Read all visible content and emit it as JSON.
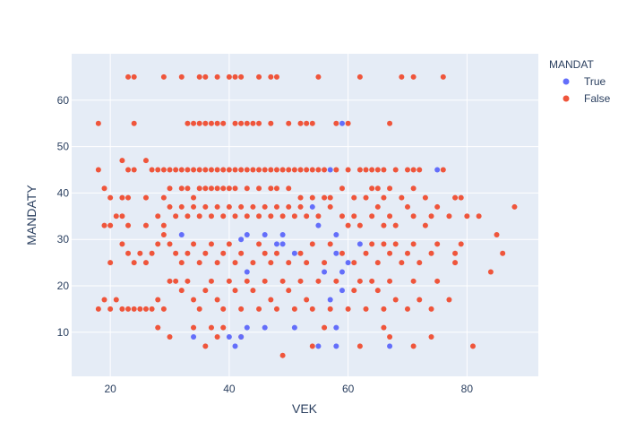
{
  "chart_data": {
    "type": "scatter",
    "xlabel": "VEK",
    "ylabel": "MANDATY",
    "xlim": [
      13.5,
      92
    ],
    "ylim": [
      0.5,
      70
    ],
    "x_ticks": [
      20,
      40,
      60,
      80
    ],
    "y_ticks": [
      10,
      20,
      30,
      40,
      50,
      60
    ],
    "grid": true,
    "legend": {
      "title": "MANDAT",
      "placement": "right"
    },
    "colors": {
      "True": "#636efa",
      "False": "#ef553b",
      "plot_bg": "#e5ecf6",
      "grid": "#ffffff",
      "text": "#2a3f5f"
    },
    "series": [
      {
        "name": "True",
        "color": "#636efa",
        "points": [
          [
            32,
            31
          ],
          [
            42,
            30
          ],
          [
            43,
            31
          ],
          [
            46,
            31
          ],
          [
            48,
            29
          ],
          [
            49,
            31
          ],
          [
            49,
            29
          ],
          [
            51,
            27
          ],
          [
            54,
            37
          ],
          [
            55,
            33
          ],
          [
            56,
            23
          ],
          [
            57,
            45
          ],
          [
            58,
            31
          ],
          [
            58,
            27
          ],
          [
            59,
            23
          ],
          [
            60,
            25
          ],
          [
            62,
            29
          ],
          [
            75,
            45
          ],
          [
            59,
            55
          ],
          [
            40,
            9
          ],
          [
            41,
            7
          ],
          [
            42,
            9
          ],
          [
            43,
            11
          ],
          [
            46,
            11
          ],
          [
            51,
            11
          ],
          [
            55,
            7
          ],
          [
            58,
            7
          ],
          [
            67,
            7
          ],
          [
            43,
            23
          ],
          [
            57,
            17
          ],
          [
            59,
            19
          ],
          [
            58,
            11
          ],
          [
            34,
            9
          ]
        ]
      },
      {
        "name": "False",
        "color": "#ef553b",
        "points": [
          [
            23,
            65
          ],
          [
            24,
            65
          ],
          [
            29,
            65
          ],
          [
            32,
            65
          ],
          [
            35,
            65
          ],
          [
            36,
            65
          ],
          [
            38,
            65
          ],
          [
            40,
            65
          ],
          [
            41,
            65
          ],
          [
            42,
            65
          ],
          [
            45,
            65
          ],
          [
            47,
            65
          ],
          [
            48,
            65
          ],
          [
            55,
            65
          ],
          [
            62,
            65
          ],
          [
            69,
            65
          ],
          [
            71,
            65
          ],
          [
            76,
            65
          ],
          [
            18,
            55
          ],
          [
            24,
            55
          ],
          [
            33,
            55
          ],
          [
            34,
            55
          ],
          [
            35,
            55
          ],
          [
            36,
            55
          ],
          [
            37,
            55
          ],
          [
            38,
            55
          ],
          [
            39,
            55
          ],
          [
            41,
            55
          ],
          [
            42,
            55
          ],
          [
            43,
            55
          ],
          [
            44,
            55
          ],
          [
            45,
            55
          ],
          [
            47,
            55
          ],
          [
            50,
            55
          ],
          [
            52,
            55
          ],
          [
            53,
            55
          ],
          [
            54,
            55
          ],
          [
            58,
            55
          ],
          [
            60,
            55
          ],
          [
            67,
            55
          ],
          [
            18,
            45
          ],
          [
            22,
            47
          ],
          [
            23,
            45
          ],
          [
            24,
            45
          ],
          [
            26,
            47
          ],
          [
            27,
            45
          ],
          [
            28,
            45
          ],
          [
            29,
            45
          ],
          [
            30,
            45
          ],
          [
            31,
            45
          ],
          [
            32,
            45
          ],
          [
            33,
            45
          ],
          [
            34,
            45
          ],
          [
            35,
            45
          ],
          [
            36,
            45
          ],
          [
            37,
            45
          ],
          [
            38,
            45
          ],
          [
            39,
            45
          ],
          [
            40,
            45
          ],
          [
            41,
            45
          ],
          [
            42,
            45
          ],
          [
            43,
            45
          ],
          [
            44,
            45
          ],
          [
            45,
            45
          ],
          [
            46,
            45
          ],
          [
            47,
            45
          ],
          [
            48,
            45
          ],
          [
            49,
            45
          ],
          [
            50,
            45
          ],
          [
            51,
            45
          ],
          [
            52,
            45
          ],
          [
            53,
            45
          ],
          [
            54,
            45
          ],
          [
            55,
            45
          ],
          [
            56,
            45
          ],
          [
            58,
            45
          ],
          [
            60,
            45
          ],
          [
            62,
            45
          ],
          [
            63,
            45
          ],
          [
            64,
            45
          ],
          [
            65,
            45
          ],
          [
            66,
            45
          ],
          [
            68,
            45
          ],
          [
            70,
            45
          ],
          [
            71,
            45
          ],
          [
            72,
            45
          ],
          [
            76,
            45
          ],
          [
            19,
            41
          ],
          [
            20,
            39
          ],
          [
            22,
            39
          ],
          [
            23,
            39
          ],
          [
            26,
            39
          ],
          [
            29,
            39
          ],
          [
            30,
            41
          ],
          [
            32,
            41
          ],
          [
            33,
            41
          ],
          [
            34,
            39
          ],
          [
            35,
            41
          ],
          [
            36,
            41
          ],
          [
            37,
            41
          ],
          [
            38,
            41
          ],
          [
            39,
            41
          ],
          [
            40,
            41
          ],
          [
            41,
            41
          ],
          [
            43,
            41
          ],
          [
            45,
            41
          ],
          [
            47,
            41
          ],
          [
            48,
            41
          ],
          [
            50,
            41
          ],
          [
            52,
            39
          ],
          [
            54,
            39
          ],
          [
            56,
            39
          ],
          [
            57,
            39
          ],
          [
            59,
            41
          ],
          [
            61,
            39
          ],
          [
            63,
            39
          ],
          [
            64,
            41
          ],
          [
            65,
            41
          ],
          [
            66,
            39
          ],
          [
            67,
            41
          ],
          [
            69,
            39
          ],
          [
            71,
            41
          ],
          [
            73,
            39
          ],
          [
            78,
            39
          ],
          [
            79,
            39
          ],
          [
            21,
            35
          ],
          [
            22,
            35
          ],
          [
            20,
            33
          ],
          [
            19,
            33
          ],
          [
            23,
            33
          ],
          [
            26,
            33
          ],
          [
            28,
            35
          ],
          [
            29,
            33
          ],
          [
            30,
            37
          ],
          [
            31,
            35
          ],
          [
            32,
            37
          ],
          [
            33,
            35
          ],
          [
            34,
            37
          ],
          [
            35,
            35
          ],
          [
            36,
            37
          ],
          [
            37,
            35
          ],
          [
            38,
            37
          ],
          [
            39,
            35
          ],
          [
            40,
            37
          ],
          [
            41,
            35
          ],
          [
            42,
            37
          ],
          [
            43,
            35
          ],
          [
            44,
            37
          ],
          [
            45,
            35
          ],
          [
            46,
            37
          ],
          [
            47,
            35
          ],
          [
            48,
            37
          ],
          [
            49,
            35
          ],
          [
            50,
            37
          ],
          [
            51,
            35
          ],
          [
            52,
            37
          ],
          [
            53,
            35
          ],
          [
            55,
            35
          ],
          [
            57,
            37
          ],
          [
            59,
            35
          ],
          [
            60,
            33
          ],
          [
            61,
            35
          ],
          [
            62,
            33
          ],
          [
            64,
            35
          ],
          [
            65,
            37
          ],
          [
            66,
            33
          ],
          [
            67,
            35
          ],
          [
            68,
            33
          ],
          [
            70,
            37
          ],
          [
            71,
            35
          ],
          [
            73,
            33
          ],
          [
            74,
            35
          ],
          [
            75,
            37
          ],
          [
            77,
            35
          ],
          [
            80,
            35
          ],
          [
            82,
            35
          ],
          [
            85,
            31
          ],
          [
            88,
            37
          ],
          [
            20,
            25
          ],
          [
            22,
            29
          ],
          [
            23,
            27
          ],
          [
            24,
            25
          ],
          [
            25,
            27
          ],
          [
            26,
            25
          ],
          [
            27,
            27
          ],
          [
            28,
            29
          ],
          [
            29,
            31
          ],
          [
            30,
            29
          ],
          [
            31,
            27
          ],
          [
            32,
            25
          ],
          [
            33,
            27
          ],
          [
            34,
            29
          ],
          [
            35,
            25
          ],
          [
            36,
            27
          ],
          [
            37,
            29
          ],
          [
            38,
            25
          ],
          [
            39,
            27
          ],
          [
            40,
            29
          ],
          [
            41,
            25
          ],
          [
            42,
            27
          ],
          [
            44,
            25
          ],
          [
            45,
            29
          ],
          [
            46,
            27
          ],
          [
            47,
            25
          ],
          [
            48,
            27
          ],
          [
            50,
            25
          ],
          [
            52,
            27
          ],
          [
            53,
            25
          ],
          [
            54,
            29
          ],
          [
            56,
            25
          ],
          [
            57,
            29
          ],
          [
            59,
            27
          ],
          [
            61,
            25
          ],
          [
            63,
            27
          ],
          [
            64,
            29
          ],
          [
            65,
            25
          ],
          [
            66,
            29
          ],
          [
            67,
            27
          ],
          [
            68,
            29
          ],
          [
            69,
            25
          ],
          [
            70,
            27
          ],
          [
            71,
            29
          ],
          [
            72,
            25
          ],
          [
            74,
            27
          ],
          [
            75,
            29
          ],
          [
            78,
            27
          ],
          [
            79,
            29
          ],
          [
            86,
            27
          ],
          [
            18,
            15
          ],
          [
            19,
            17
          ],
          [
            20,
            15
          ],
          [
            21,
            17
          ],
          [
            22,
            15
          ],
          [
            23,
            15
          ],
          [
            24,
            15
          ],
          [
            25,
            15
          ],
          [
            26,
            15
          ],
          [
            27,
            15
          ],
          [
            28,
            17
          ],
          [
            29,
            15
          ],
          [
            30,
            21
          ],
          [
            31,
            21
          ],
          [
            32,
            19
          ],
          [
            33,
            21
          ],
          [
            34,
            17
          ],
          [
            35,
            15
          ],
          [
            36,
            19
          ],
          [
            37,
            21
          ],
          [
            38,
            17
          ],
          [
            39,
            15
          ],
          [
            40,
            21
          ],
          [
            41,
            19
          ],
          [
            42,
            15
          ],
          [
            43,
            21
          ],
          [
            44,
            19
          ],
          [
            45,
            15
          ],
          [
            46,
            21
          ],
          [
            47,
            17
          ],
          [
            48,
            15
          ],
          [
            49,
            21
          ],
          [
            50,
            19
          ],
          [
            51,
            15
          ],
          [
            52,
            21
          ],
          [
            53,
            17
          ],
          [
            54,
            15
          ],
          [
            55,
            21
          ],
          [
            57,
            15
          ],
          [
            58,
            21
          ],
          [
            60,
            15
          ],
          [
            61,
            19
          ],
          [
            62,
            21
          ],
          [
            63,
            15
          ],
          [
            64,
            21
          ],
          [
            65,
            19
          ],
          [
            66,
            15
          ],
          [
            67,
            21
          ],
          [
            68,
            17
          ],
          [
            70,
            15
          ],
          [
            71,
            21
          ],
          [
            72,
            17
          ],
          [
            74,
            15
          ],
          [
            75,
            21
          ],
          [
            77,
            17
          ],
          [
            78,
            25
          ],
          [
            84,
            23
          ],
          [
            28,
            11
          ],
          [
            30,
            9
          ],
          [
            34,
            11
          ],
          [
            36,
            7
          ],
          [
            37,
            11
          ],
          [
            38,
            9
          ],
          [
            39,
            11
          ],
          [
            42,
            9
          ],
          [
            49,
            5
          ],
          [
            54,
            7
          ],
          [
            56,
            11
          ],
          [
            62,
            7
          ],
          [
            66,
            11
          ],
          [
            67,
            9
          ],
          [
            71,
            7
          ],
          [
            74,
            9
          ],
          [
            81,
            7
          ]
        ]
      }
    ]
  }
}
